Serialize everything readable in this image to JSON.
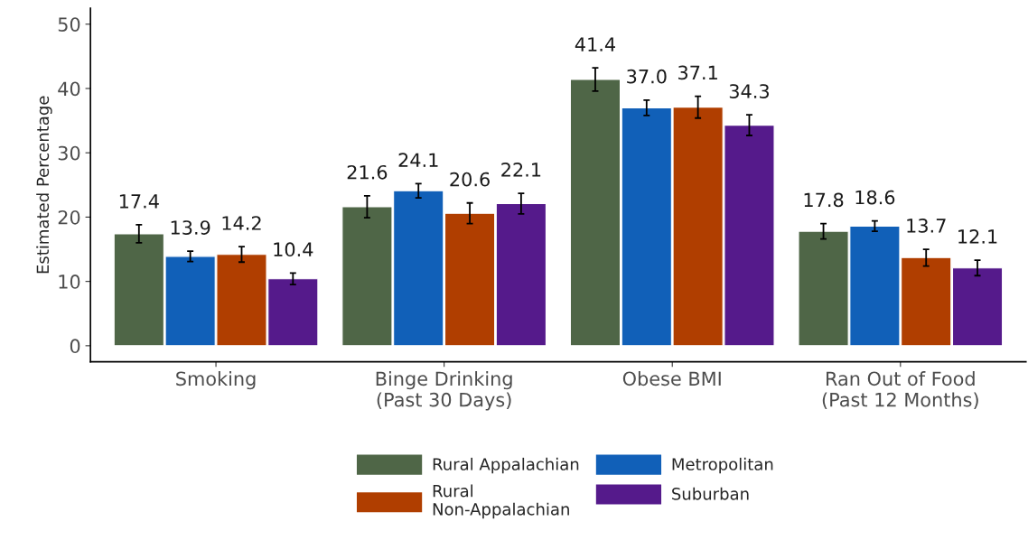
{
  "chart_data": {
    "type": "bar",
    "ylabel": "Estimated Percentage",
    "categories": [
      "Smoking",
      "Binge Drinking\n(Past 30 Days)",
      "Obese BMI",
      "Ran Out of Food\n(Past 12 Months)"
    ],
    "series": [
      {
        "name": "Rural Appalachian",
        "color": "#4f6647",
        "values": [
          17.4,
          21.6,
          41.4,
          17.8
        ],
        "errors": [
          1.4,
          1.7,
          1.8,
          1.2
        ],
        "value_labels": [
          "17.4",
          "21.6",
          "41.4",
          "17.8"
        ]
      },
      {
        "name": "Metropolitan",
        "color": "#1160b8",
        "values": [
          13.9,
          24.1,
          37.0,
          18.6
        ],
        "errors": [
          0.8,
          1.1,
          1.2,
          0.8
        ],
        "value_labels": [
          "13.9",
          "24.1",
          "37.0",
          "18.6"
        ]
      },
      {
        "name": "Rural\nNon-Appalachian",
        "color": "#b03e00",
        "values": [
          14.2,
          20.6,
          37.1,
          13.7
        ],
        "errors": [
          1.2,
          1.6,
          1.7,
          1.3
        ],
        "value_labels": [
          "14.2",
          "20.6",
          "37.1",
          "13.7"
        ]
      },
      {
        "name": "Suburban",
        "color": "#551a8b",
        "values": [
          10.4,
          22.1,
          34.3,
          12.1
        ],
        "errors": [
          0.9,
          1.6,
          1.6,
          1.2
        ],
        "value_labels": [
          "10.4",
          "22.1",
          "34.3",
          "12.1"
        ]
      }
    ],
    "ylim": [
      -2.5,
      52.5
    ],
    "yticks": [
      0,
      10,
      20,
      30,
      40,
      50
    ],
    "grid": false,
    "legend": "bottom"
  }
}
